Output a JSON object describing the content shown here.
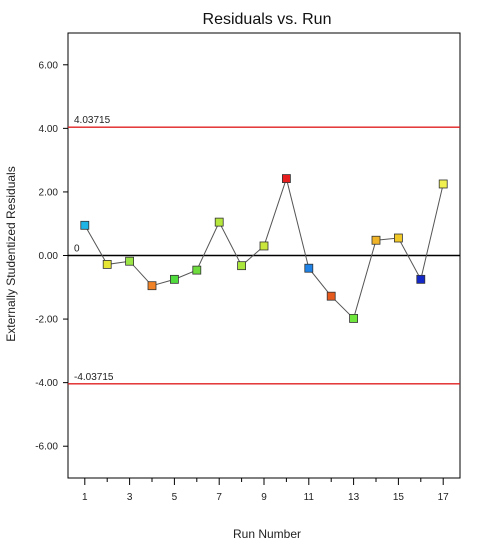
{
  "chart_data": {
    "type": "scatter",
    "title": "Residuals vs. Run",
    "xlabel": "Run Number",
    "ylabel": "Externally Studentized Residuals",
    "xlim": [
      0.25,
      17.75
    ],
    "ylim": [
      -7,
      7
    ],
    "x_ticks": [
      1,
      3,
      5,
      7,
      9,
      11,
      13,
      15,
      17
    ],
    "x_minor_ticks": [
      2,
      4,
      6,
      8,
      10,
      12,
      14,
      16
    ],
    "y_ticks": [
      6,
      4,
      2,
      0,
      -2,
      -4,
      -6
    ],
    "y_tick_labels": [
      "6.00",
      "4.00",
      "2.00",
      "0.00",
      "-2.00",
      "-4.00",
      "-6.00"
    ],
    "reference_lines": [
      {
        "value": 4.03715,
        "label": "4.03715",
        "color": "#e02020"
      },
      {
        "value": 0,
        "label": "0",
        "color": "#000000"
      },
      {
        "value": -4.03715,
        "label": "-4.03715",
        "color": "#e02020"
      }
    ],
    "grid": false,
    "connect_points": true,
    "line_color": "#555555",
    "points": [
      {
        "x": 1,
        "y": 0.95,
        "color": "#1eb4e6"
      },
      {
        "x": 2,
        "y": -0.28,
        "color": "#e6e632"
      },
      {
        "x": 3,
        "y": -0.18,
        "color": "#9be646"
      },
      {
        "x": 4,
        "y": -0.95,
        "color": "#f08228"
      },
      {
        "x": 5,
        "y": -0.75,
        "color": "#50dc3c"
      },
      {
        "x": 6,
        "y": -0.46,
        "color": "#6edc3c"
      },
      {
        "x": 7,
        "y": 1.05,
        "color": "#b4e63c"
      },
      {
        "x": 8,
        "y": -0.32,
        "color": "#aae63c"
      },
      {
        "x": 9,
        "y": 0.3,
        "color": "#c8e63c"
      },
      {
        "x": 10,
        "y": 2.42,
        "color": "#e61e1e"
      },
      {
        "x": 11,
        "y": -0.4,
        "color": "#1e82e6"
      },
      {
        "x": 12,
        "y": -1.28,
        "color": "#e65a1e"
      },
      {
        "x": 13,
        "y": -1.98,
        "color": "#6ee63c"
      },
      {
        "x": 14,
        "y": 0.48,
        "color": "#f0b428"
      },
      {
        "x": 15,
        "y": 0.55,
        "color": "#f0c828"
      },
      {
        "x": 16,
        "y": -0.75,
        "color": "#1428c8"
      },
      {
        "x": 17,
        "y": 2.25,
        "color": "#f0f050"
      }
    ]
  }
}
